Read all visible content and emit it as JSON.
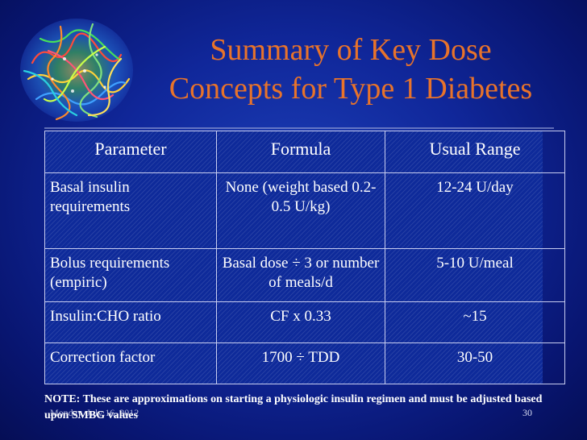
{
  "slide": {
    "title_line1": "Summary of Key Dose",
    "title_line2": "Concepts for Type 1 Diabetes",
    "table": {
      "headers": [
        "Parameter",
        "Formula",
        "Usual Range"
      ],
      "rows": [
        [
          "Basal insulin requirements",
          "None (weight based 0.2-0.5 U/kg)",
          "12-24 U/day"
        ],
        [
          "Bolus requirements (empiric)",
          "Basal dose ÷ 3 or number of meals/d",
          "5-10 U/meal"
        ],
        [
          "Insulin:CHO ratio",
          "CF x 0.33",
          "~15"
        ],
        [
          "Correction factor",
          "1700 ÷ TDD",
          "30-50"
        ]
      ]
    },
    "note": "NOTE: These are approximations on starting a physiologic insulin regimen and must be adjusted based upon SMBG values",
    "footer_date": "Monday, July 16, 2012",
    "page_number": "30",
    "colors": {
      "title": "#e8732a",
      "background": "#10279a",
      "text": "#ffffff"
    },
    "logo_icon": "protein-structure-icon"
  }
}
